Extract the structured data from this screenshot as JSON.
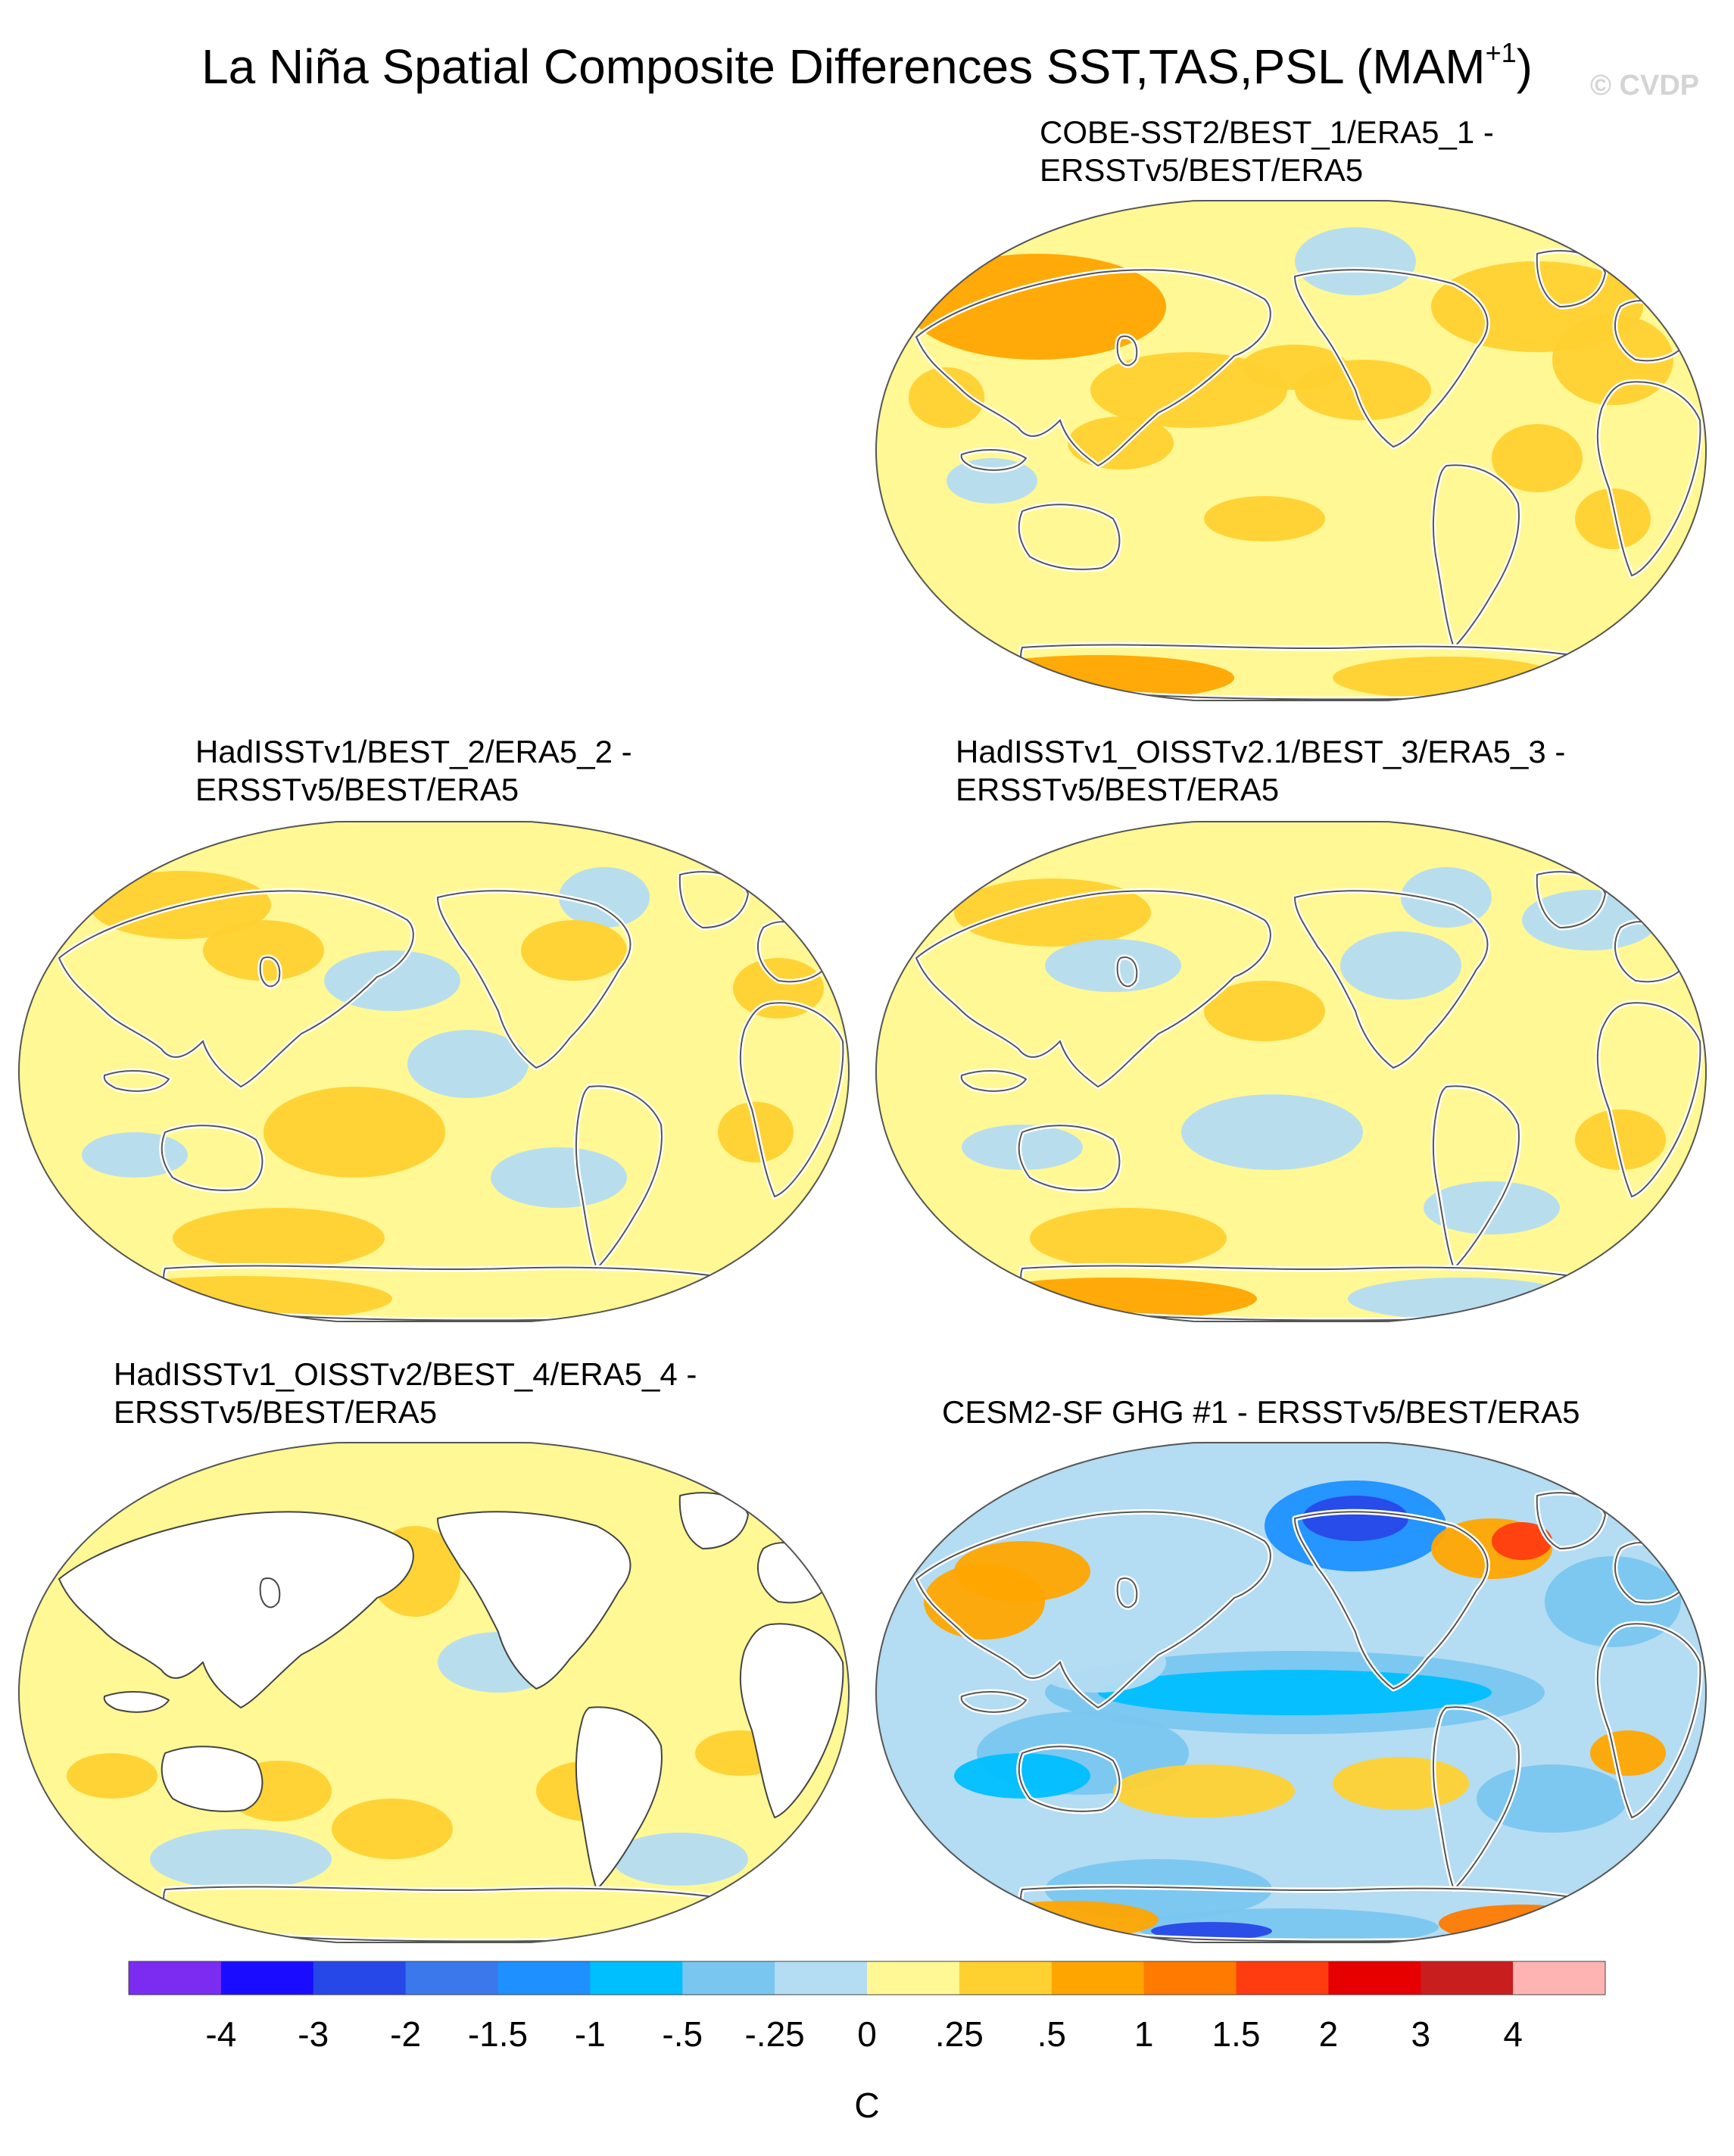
{
  "title": {
    "text": "La Niña Spatial Composite Differences SST,TAS,PSL (MAM",
    "superscript": "+1",
    "suffix": ")"
  },
  "watermark": "© CVDP",
  "colors": {
    "land_outline": "#555555",
    "missing": "#ffffff",
    "palette": [
      "#7b2cf0",
      "#1a0dff",
      "#2748e8",
      "#3a78ec",
      "#1e90ff",
      "#00bfff",
      "#79c6f0",
      "#b4dcf2",
      "#fff894",
      "#ffd130",
      "#ffa500",
      "#ff7a00",
      "#ff3c10",
      "#e60000",
      "#c81e1e",
      "#ffb4b4"
    ]
  },
  "chart_data": [
    {
      "type": "heatmap",
      "id": "p1",
      "title_lines": [
        "COBE-SST2/BEST_1/ERA5_1 -",
        "ERSSTv5/BEST/ERA5"
      ],
      "projection": "Winkel tripel (Pacific-centered)",
      "dominant_value": "0 to .25",
      "notable_regions": [
        {
          "region": "Siberia / North Asia",
          "value": ".25 to .5"
        },
        {
          "region": "North Atlantic / Greenland",
          "value": ".25 to .5"
        },
        {
          "region": "Alaska",
          "value": "-.25 to 0"
        },
        {
          "region": "Antarctica",
          "value": ".25 to 1"
        }
      ]
    },
    {
      "type": "heatmap",
      "id": "p2",
      "title_lines": [
        "HadISSTv1/BEST_2/ERA5_2 -",
        "ERSSTv5/BEST/ERA5"
      ],
      "projection": "Winkel tripel (Pacific-centered)",
      "dominant_value": "0 to .25",
      "notable_regions": [
        {
          "region": "Arctic / Siberia",
          "value": ".25 to .5"
        },
        {
          "region": "North Pacific",
          "value": "-.25 to .5"
        },
        {
          "region": "South Pacific",
          "value": ".25 to .5"
        },
        {
          "region": "Antarctica",
          "value": ".25 to .5"
        }
      ]
    },
    {
      "type": "heatmap",
      "id": "p3",
      "title_lines": [
        "HadISSTv1_OISSTv2.1/BEST_3/ERA5_3 -",
        "ERSSTv5/BEST/ERA5"
      ],
      "projection": "Winkel tripel (Pacific-centered)",
      "dominant_value": "0 to .25",
      "notable_regions": [
        {
          "region": "Tropical Pacific",
          "value": "-.25 to 0"
        },
        {
          "region": "Southern Ocean",
          "value": "-.25 to 0"
        },
        {
          "region": "Antarctica",
          "value": ".25 to 1"
        }
      ]
    },
    {
      "type": "heatmap",
      "id": "p4",
      "title_lines": [
        "HadISSTv1_OISSTv2/BEST_4/ERA5_4 -",
        "ERSSTv5/BEST/ERA5"
      ],
      "projection": "Winkel tripel (Pacific-centered)",
      "dominant_value": "0 to .25",
      "notable_regions": [
        {
          "region": "Land areas",
          "value": "missing"
        },
        {
          "region": "North Pacific",
          "value": ".25 to .5"
        },
        {
          "region": "Southern Ocean",
          "value": "-.25 to .5"
        }
      ]
    },
    {
      "type": "heatmap",
      "id": "p5",
      "title_lines": [
        "CESM2-SF GHG #1 - ERSSTv5/BEST/ERA5"
      ],
      "projection": "Winkel tripel (Pacific-centered)",
      "dominant_value": "-.5 to 0",
      "notable_regions": [
        {
          "region": "Alaska / NW Canada",
          "value": "-2 to -1"
        },
        {
          "region": "Tropical Pacific",
          "value": "-1 to -.25"
        },
        {
          "region": "Subtropical South Indian Ocean",
          "value": "-1 to -.5"
        },
        {
          "region": "Hudson Bay / Labrador",
          "value": "1 to 2"
        },
        {
          "region": "Antarctica",
          "value": "-2 to 1.5"
        }
      ]
    },
    {
      "type": "colorbar",
      "id": "colorbar",
      "levels": [
        "-4",
        "-3",
        "-2",
        "-1.5",
        "-1",
        "-.5",
        "-.25",
        "0",
        ".25",
        ".5",
        "1",
        "1.5",
        "2",
        "3",
        "4"
      ],
      "units": "C"
    }
  ]
}
